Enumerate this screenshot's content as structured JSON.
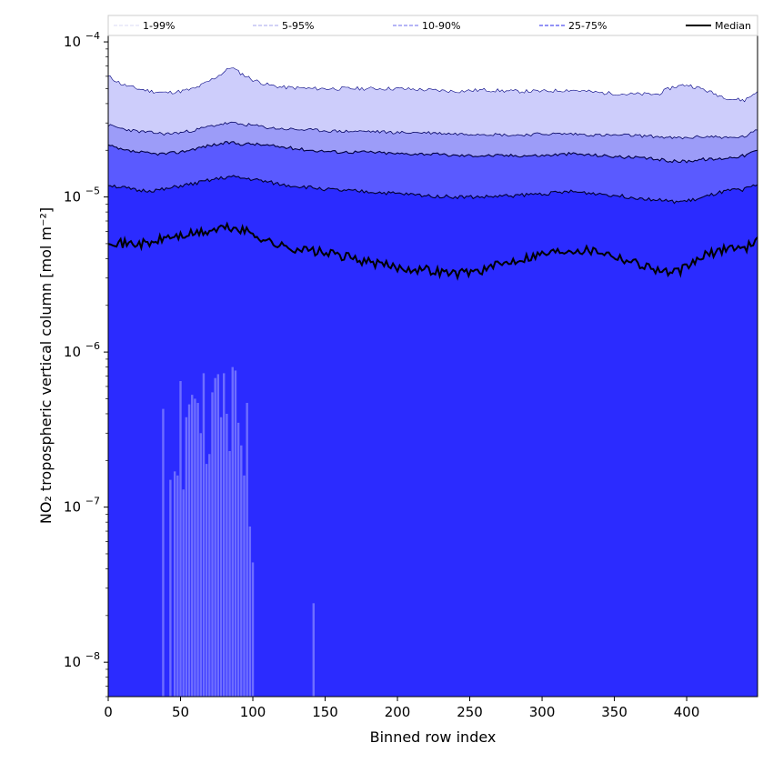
{
  "chart_data": {
    "type": "area",
    "title": "",
    "xlabel": "Binned row index",
    "ylabel": "NO₂ tropospheric vertical column [mol m⁻²]",
    "xlim": [
      0,
      449
    ],
    "ylim": [
      6e-09,
      0.00011
    ],
    "yscale": "log",
    "x_ticks": [
      0,
      50,
      100,
      150,
      200,
      250,
      300,
      350,
      400
    ],
    "x_tick_labels": [
      "0",
      "50",
      "100",
      "150",
      "200",
      "250",
      "300",
      "350",
      "400"
    ],
    "y_ticks": [
      1e-08,
      1e-07,
      1e-06,
      1e-05,
      0.0001
    ],
    "y_tick_labels": [
      {
        "base": "10",
        "exp": "−8"
      },
      {
        "base": "10",
        "exp": "−7"
      },
      {
        "base": "10",
        "exp": "−6"
      },
      {
        "base": "10",
        "exp": "−5"
      },
      {
        "base": "10",
        "exp": "−4"
      }
    ],
    "legend": {
      "placement": "top",
      "entries": [
        {
          "label": "1-99%",
          "color": "#e0e0f8",
          "style": "dashed"
        },
        {
          "label": "5-95%",
          "color": "#b8b8f0",
          "style": "dashed"
        },
        {
          "label": "10-90%",
          "color": "#8888f0",
          "style": "dashed"
        },
        {
          "label": "25-75%",
          "color": "#5050f0",
          "style": "dashed"
        },
        {
          "label": "Median",
          "color": "#000000",
          "style": "solid"
        }
      ]
    },
    "x": [
      0,
      10,
      20,
      30,
      40,
      50,
      60,
      70,
      78,
      85,
      90,
      100,
      110,
      120,
      140,
      160,
      180,
      200,
      220,
      240,
      260,
      280,
      300,
      320,
      340,
      360,
      380,
      390,
      400,
      410,
      420,
      430,
      440,
      449
    ],
    "series": [
      {
        "name": "p95",
        "values": [
          6e-05,
          5.3e-05,
          5e-05,
          4.8e-05,
          4.7e-05,
          4.8e-05,
          5e-05,
          5.6e-05,
          6.2e-05,
          6.9e-05,
          6.4e-05,
          5.7e-05,
          5.3e-05,
          5.1e-05,
          5e-05,
          5e-05,
          5e-05,
          5e-05,
          4.9e-05,
          4.8e-05,
          4.9e-05,
          4.8e-05,
          4.8e-05,
          4.9e-05,
          4.7e-05,
          4.6e-05,
          4.6e-05,
          5.1e-05,
          5.3e-05,
          5e-05,
          4.6e-05,
          4.3e-05,
          4.2e-05,
          4.8e-05
        ]
      },
      {
        "name": "p90",
        "values": [
          2.9e-05,
          2.75e-05,
          2.65e-05,
          2.6e-05,
          2.55e-05,
          2.6e-05,
          2.7e-05,
          2.85e-05,
          2.95e-05,
          3e-05,
          2.95e-05,
          2.9e-05,
          2.8e-05,
          2.75e-05,
          2.7e-05,
          2.65e-05,
          2.65e-05,
          2.6e-05,
          2.6e-05,
          2.55e-05,
          2.55e-05,
          2.5e-05,
          2.55e-05,
          2.55e-05,
          2.5e-05,
          2.5e-05,
          2.45e-05,
          2.4e-05,
          2.4e-05,
          2.45e-05,
          2.45e-05,
          2.4e-05,
          2.45e-05,
          2.7e-05
        ]
      },
      {
        "name": "p75",
        "values": [
          2.15e-05,
          2e-05,
          1.95e-05,
          1.9e-05,
          1.9e-05,
          1.95e-05,
          2.05e-05,
          2.15e-05,
          2.2e-05,
          2.25e-05,
          2.2e-05,
          2.2e-05,
          2.15e-05,
          2.1e-05,
          2e-05,
          1.95e-05,
          1.95e-05,
          1.9e-05,
          1.9e-05,
          1.85e-05,
          1.85e-05,
          1.85e-05,
          1.85e-05,
          1.9e-05,
          1.85e-05,
          1.8e-05,
          1.75e-05,
          1.7e-05,
          1.7e-05,
          1.75e-05,
          1.75e-05,
          1.8e-05,
          1.85e-05,
          2e-05
        ]
      },
      {
        "name": "p25",
        "values": [
          1.2e-05,
          1.15e-05,
          1.1e-05,
          1.1e-05,
          1.12e-05,
          1.18e-05,
          1.22e-05,
          1.28e-05,
          1.32e-05,
          1.35e-05,
          1.33e-05,
          1.3e-05,
          1.25e-05,
          1.2e-05,
          1.15e-05,
          1.1e-05,
          1.08e-05,
          1.05e-05,
          1.02e-05,
          1e-05,
          1e-05,
          1.02e-05,
          1.05e-05,
          1.08e-05,
          1.05e-05,
          1e-05,
          9.6e-06,
          9.3e-06,
          9.4e-06,
          9.8e-06,
          1.05e-05,
          1.1e-05,
          1.12e-05,
          1.2e-05
        ]
      },
      {
        "name": "Median",
        "values": [
          5.3e-06,
          5e-06,
          5e-06,
          5e-06,
          5.5e-06,
          5.6e-06,
          5.8e-06,
          6e-06,
          6.3e-06,
          6.3e-06,
          6.2e-06,
          5.8e-06,
          5.2e-06,
          4.8e-06,
          4.5e-06,
          4.2e-06,
          3.8e-06,
          3.5e-06,
          3.4e-06,
          3.2e-06,
          3.4e-06,
          3.9e-06,
          4.3e-06,
          4.6e-06,
          4.5e-06,
          3.9e-06,
          3.4e-06,
          3.2e-06,
          3.5e-06,
          4.1e-06,
          4.4e-06,
          4.8e-06,
          4.6e-06,
          5.5e-06
        ]
      }
    ],
    "lower_spikes": {
      "x": [
        38,
        43,
        46,
        48,
        50,
        52,
        54,
        56,
        58,
        60,
        62,
        64,
        66,
        68,
        70,
        72,
        74,
        76,
        78,
        80,
        82,
        84,
        86,
        88,
        90,
        92,
        94,
        96,
        98,
        100,
        142
      ],
      "values": [
        4.3e-07,
        1.5e-07,
        1.7e-07,
        1.6e-07,
        6.5e-07,
        1.3e-07,
        3.8e-07,
        4.6e-07,
        5.3e-07,
        5e-07,
        4.7e-07,
        3e-07,
        7.3e-07,
        1.9e-07,
        2.2e-07,
        5.5e-07,
        6.8e-07,
        7.2e-07,
        3.8e-07,
        7.3e-07,
        4e-07,
        2.3e-07,
        8e-07,
        7.6e-07,
        3.5e-07,
        2.5e-07,
        1.6e-07,
        4.7e-07,
        7.5e-08,
        4.4e-08,
        2.4e-08
      ]
    },
    "colors": {
      "band_1_99": "#ffffff",
      "band_5_95": "#cdcdfb",
      "band_10_90": "#9c9cf8",
      "band_25_75": "#5a5aff",
      "band_lower": "#2b2bff",
      "median": "#000000",
      "spikes": "#7a7aff"
    }
  }
}
